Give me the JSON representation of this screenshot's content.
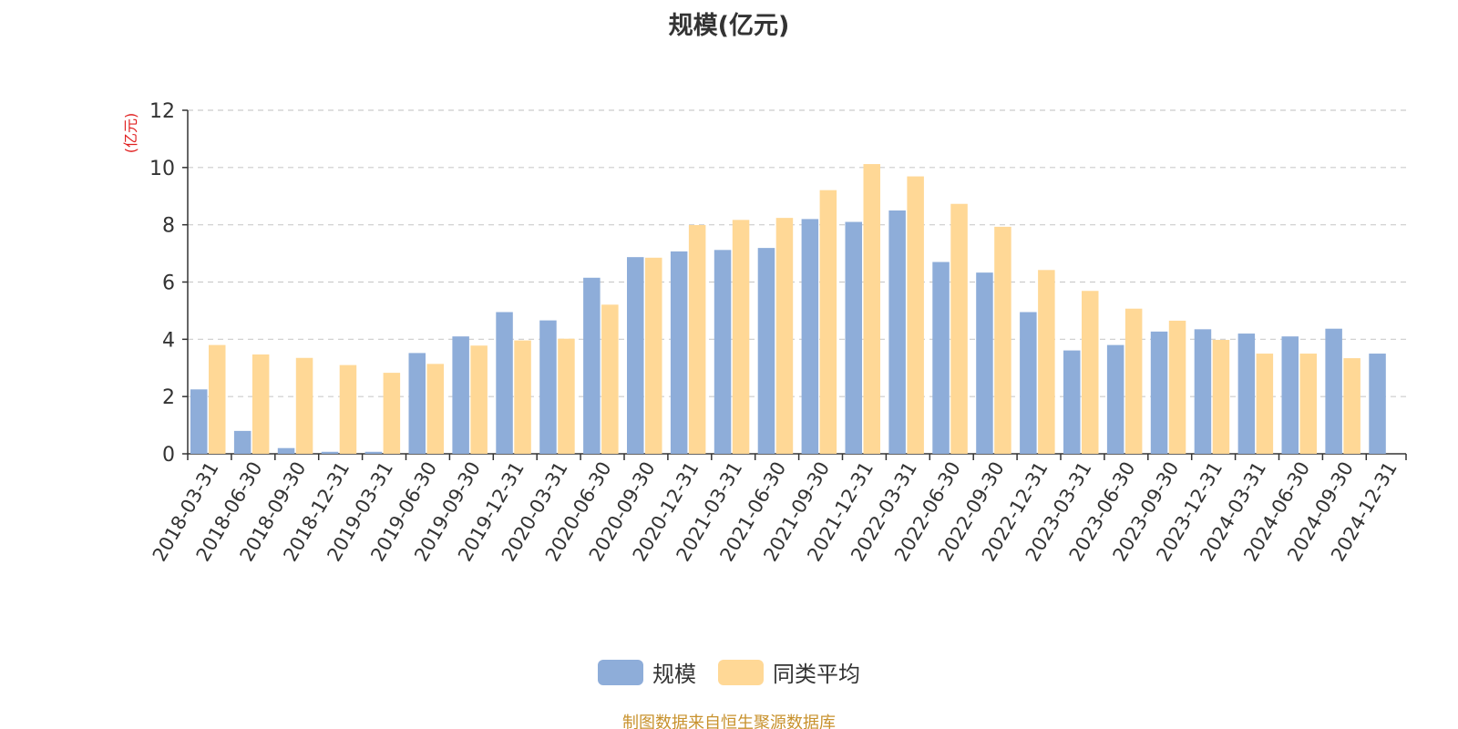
{
  "title": "规模(亿元)",
  "source_note": "制图数据来自恒生聚源数据库",
  "colors": {
    "series_1": "#8eadd9",
    "series_2": "#ffd896",
    "axis_unit_label": "#e02020",
    "grid": "#cccccc",
    "axis": "#333333"
  },
  "chart_data": {
    "type": "bar",
    "title": "规模(亿元)",
    "ylabel": "(亿元)",
    "ylim": [
      0,
      12
    ],
    "yticks": [
      0,
      2,
      4,
      6,
      8,
      10,
      12
    ],
    "grid": true,
    "legend_position": "bottom-center",
    "categories": [
      "2018-03-31",
      "2018-06-30",
      "2018-09-30",
      "2018-12-31",
      "2019-03-31",
      "2019-06-30",
      "2019-09-30",
      "2019-12-31",
      "2020-03-31",
      "2020-06-30",
      "2020-09-30",
      "2020-12-31",
      "2021-03-31",
      "2021-06-30",
      "2021-09-30",
      "2021-12-31",
      "2022-03-31",
      "2022-06-30",
      "2022-09-30",
      "2022-12-31",
      "2023-03-31",
      "2023-06-30",
      "2023-09-30",
      "2023-12-31",
      "2024-03-31",
      "2024-06-30",
      "2024-09-30",
      "2024-12-31"
    ],
    "series": [
      {
        "name": "规模",
        "color": "#8eadd9",
        "values": [
          2.25,
          0.8,
          0.2,
          0.07,
          0.07,
          3.52,
          4.1,
          4.95,
          4.66,
          6.15,
          6.87,
          7.07,
          7.12,
          7.19,
          8.2,
          8.1,
          8.5,
          6.7,
          6.33,
          4.95,
          3.61,
          3.8,
          4.27,
          4.35,
          4.2,
          4.1,
          4.37,
          3.5
        ]
      },
      {
        "name": "同类平均",
        "color": "#ffd896",
        "values": [
          3.8,
          3.47,
          3.35,
          3.1,
          2.83,
          3.14,
          3.78,
          3.96,
          4.02,
          5.21,
          6.85,
          7.99,
          8.17,
          8.24,
          9.21,
          10.12,
          9.69,
          8.73,
          7.93,
          6.42,
          5.69,
          5.07,
          4.65,
          3.98,
          3.5,
          3.5,
          3.34,
          null
        ]
      }
    ]
  }
}
